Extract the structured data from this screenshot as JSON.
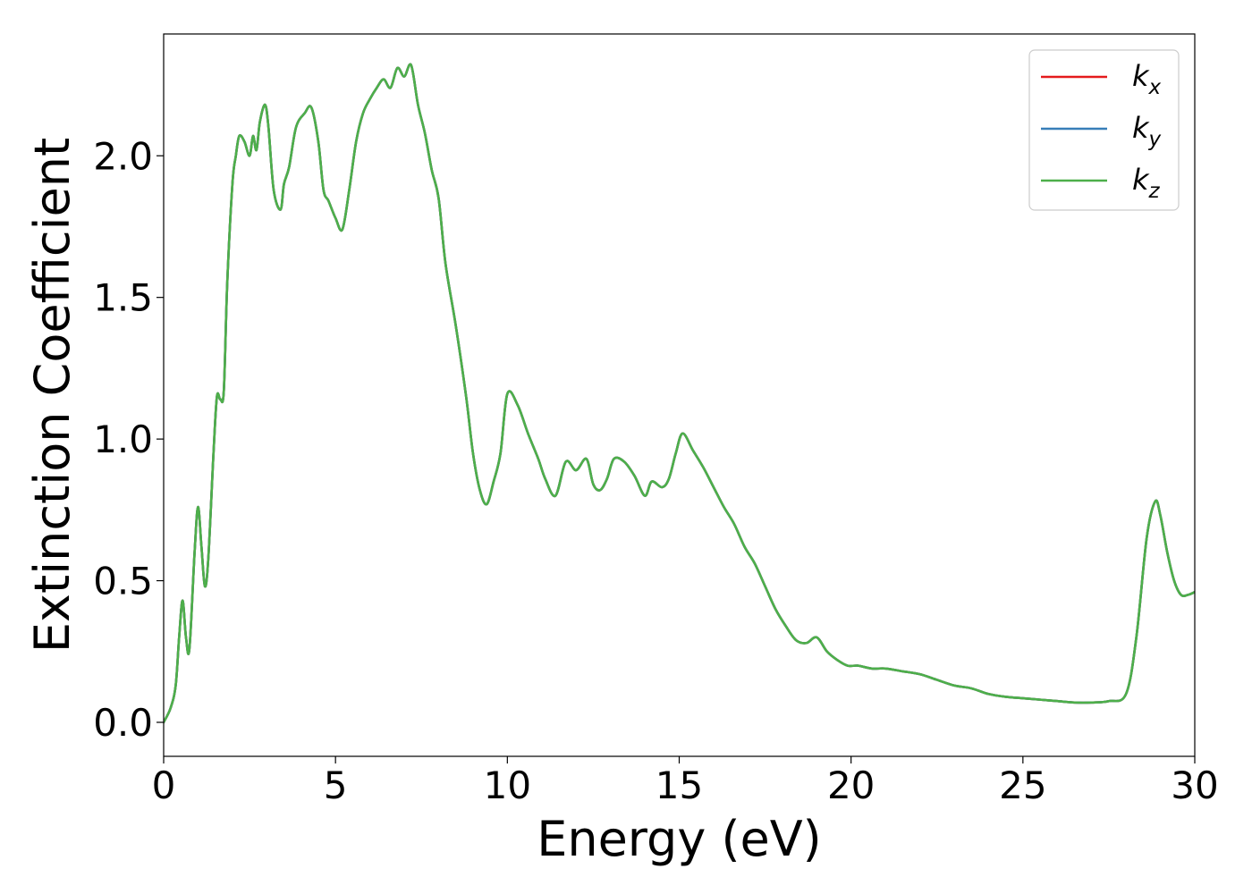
{
  "chart_data": {
    "type": "line",
    "xlabel": "Energy (eV)",
    "ylabel": "Extinction Coefficient",
    "xlim": [
      0,
      30
    ],
    "ylim": [
      -0.12,
      2.43
    ],
    "xticks": [
      0,
      5,
      10,
      15,
      20,
      25,
      30
    ],
    "xtick_labels": [
      "0",
      "5",
      "10",
      "15",
      "20",
      "25",
      "30"
    ],
    "yticks": [
      0.0,
      0.5,
      1.0,
      1.5,
      2.0
    ],
    "ytick_labels": [
      "0.0",
      "0.5",
      "1.0",
      "1.5",
      "2.0"
    ],
    "grid": false,
    "legend_position": "top-right",
    "series": [
      {
        "name": "k_x",
        "label_base": "k",
        "label_sub": "x",
        "color": "#e41a1c",
        "x": [
          0,
          0.2,
          0.35,
          0.45,
          0.55,
          0.65,
          0.75,
          0.9,
          1.0,
          1.1,
          1.2,
          1.3,
          1.45,
          1.55,
          1.65,
          1.75,
          1.85,
          2.0,
          2.1,
          2.2,
          2.35,
          2.5,
          2.6,
          2.7,
          2.8,
          2.95,
          3.05,
          3.2,
          3.4,
          3.5,
          3.65,
          3.85,
          4.1,
          4.3,
          4.5,
          4.65,
          4.8,
          5.0,
          5.2,
          5.4,
          5.6,
          5.8,
          6.0,
          6.2,
          6.4,
          6.6,
          6.8,
          7.0,
          7.2,
          7.4,
          7.6,
          7.8,
          8.0,
          8.2,
          8.5,
          8.8,
          9.0,
          9.2,
          9.4,
          9.6,
          9.8,
          10.0,
          10.3,
          10.6,
          10.9,
          11.1,
          11.4,
          11.7,
          12.0,
          12.3,
          12.5,
          12.7,
          12.9,
          13.1,
          13.4,
          13.7,
          14.0,
          14.2,
          14.5,
          14.7,
          14.9,
          15.1,
          15.4,
          15.7,
          16.0,
          16.3,
          16.6,
          16.9,
          17.2,
          17.5,
          17.8,
          18.1,
          18.4,
          18.7,
          19.0,
          19.3,
          19.6,
          19.9,
          20.2,
          20.6,
          21.0,
          21.5,
          22.0,
          22.5,
          23.0,
          23.5,
          24.0,
          24.5,
          25.0,
          25.5,
          26.0,
          26.5,
          27.0,
          27.5,
          28.0,
          28.3,
          28.6,
          28.85,
          29.0,
          29.2,
          29.4,
          29.6,
          29.8,
          30.0
        ],
        "y": [
          0.0,
          0.05,
          0.13,
          0.3,
          0.43,
          0.3,
          0.26,
          0.6,
          0.76,
          0.62,
          0.48,
          0.58,
          0.95,
          1.15,
          1.14,
          1.17,
          1.55,
          1.9,
          2.0,
          2.07,
          2.05,
          2.0,
          2.07,
          2.02,
          2.12,
          2.18,
          2.1,
          1.88,
          1.81,
          1.9,
          1.96,
          2.1,
          2.15,
          2.17,
          2.05,
          1.88,
          1.84,
          1.78,
          1.74,
          1.88,
          2.05,
          2.15,
          2.2,
          2.24,
          2.27,
          2.24,
          2.31,
          2.28,
          2.32,
          2.18,
          2.08,
          1.95,
          1.85,
          1.62,
          1.4,
          1.15,
          0.95,
          0.82,
          0.77,
          0.85,
          0.95,
          1.16,
          1.12,
          1.02,
          0.93,
          0.86,
          0.8,
          0.92,
          0.89,
          0.93,
          0.84,
          0.82,
          0.86,
          0.93,
          0.92,
          0.87,
          0.8,
          0.85,
          0.83,
          0.86,
          0.95,
          1.02,
          0.96,
          0.9,
          0.83,
          0.76,
          0.7,
          0.62,
          0.56,
          0.48,
          0.4,
          0.34,
          0.29,
          0.28,
          0.3,
          0.25,
          0.22,
          0.2,
          0.2,
          0.19,
          0.19,
          0.18,
          0.17,
          0.15,
          0.13,
          0.12,
          0.1,
          0.09,
          0.085,
          0.08,
          0.075,
          0.07,
          0.07,
          0.075,
          0.1,
          0.3,
          0.65,
          0.78,
          0.73,
          0.6,
          0.5,
          0.45,
          0.45,
          0.46
        ]
      },
      {
        "name": "k_y",
        "label_base": "k",
        "label_sub": "y",
        "color": "#377eb8",
        "x": [
          0,
          0.2,
          0.35,
          0.45,
          0.55,
          0.65,
          0.75,
          0.9,
          1.0,
          1.1,
          1.2,
          1.3,
          1.45,
          1.55,
          1.65,
          1.75,
          1.85,
          2.0,
          2.1,
          2.2,
          2.35,
          2.5,
          2.6,
          2.7,
          2.8,
          2.95,
          3.05,
          3.2,
          3.4,
          3.5,
          3.65,
          3.85,
          4.1,
          4.3,
          4.5,
          4.65,
          4.8,
          5.0,
          5.2,
          5.4,
          5.6,
          5.8,
          6.0,
          6.2,
          6.4,
          6.6,
          6.8,
          7.0,
          7.2,
          7.4,
          7.6,
          7.8,
          8.0,
          8.2,
          8.5,
          8.8,
          9.0,
          9.2,
          9.4,
          9.6,
          9.8,
          10.0,
          10.3,
          10.6,
          10.9,
          11.1,
          11.4,
          11.7,
          12.0,
          12.3,
          12.5,
          12.7,
          12.9,
          13.1,
          13.4,
          13.7,
          14.0,
          14.2,
          14.5,
          14.7,
          14.9,
          15.1,
          15.4,
          15.7,
          16.0,
          16.3,
          16.6,
          16.9,
          17.2,
          17.5,
          17.8,
          18.1,
          18.4,
          18.7,
          19.0,
          19.3,
          19.6,
          19.9,
          20.2,
          20.6,
          21.0,
          21.5,
          22.0,
          22.5,
          23.0,
          23.5,
          24.0,
          24.5,
          25.0,
          25.5,
          26.0,
          26.5,
          27.0,
          27.5,
          28.0,
          28.3,
          28.6,
          28.85,
          29.0,
          29.2,
          29.4,
          29.6,
          29.8,
          30.0
        ],
        "y": [
          0.0,
          0.05,
          0.13,
          0.3,
          0.43,
          0.3,
          0.26,
          0.6,
          0.76,
          0.62,
          0.48,
          0.58,
          0.95,
          1.15,
          1.14,
          1.17,
          1.55,
          1.9,
          2.0,
          2.07,
          2.05,
          2.0,
          2.07,
          2.02,
          2.12,
          2.18,
          2.1,
          1.88,
          1.81,
          1.9,
          1.96,
          2.1,
          2.15,
          2.17,
          2.05,
          1.88,
          1.84,
          1.78,
          1.74,
          1.88,
          2.05,
          2.15,
          2.2,
          2.24,
          2.27,
          2.24,
          2.31,
          2.28,
          2.32,
          2.18,
          2.08,
          1.95,
          1.85,
          1.62,
          1.4,
          1.15,
          0.95,
          0.82,
          0.77,
          0.85,
          0.95,
          1.16,
          1.12,
          1.02,
          0.93,
          0.86,
          0.8,
          0.92,
          0.89,
          0.93,
          0.84,
          0.82,
          0.86,
          0.93,
          0.92,
          0.87,
          0.8,
          0.85,
          0.83,
          0.86,
          0.95,
          1.02,
          0.96,
          0.9,
          0.83,
          0.76,
          0.7,
          0.62,
          0.56,
          0.48,
          0.4,
          0.34,
          0.29,
          0.28,
          0.3,
          0.25,
          0.22,
          0.2,
          0.2,
          0.19,
          0.19,
          0.18,
          0.17,
          0.15,
          0.13,
          0.12,
          0.1,
          0.09,
          0.085,
          0.08,
          0.075,
          0.07,
          0.07,
          0.075,
          0.1,
          0.3,
          0.65,
          0.78,
          0.73,
          0.6,
          0.5,
          0.45,
          0.45,
          0.46
        ]
      },
      {
        "name": "k_z",
        "label_base": "k",
        "label_sub": "z",
        "color": "#4daf4a",
        "x": [
          0,
          0.2,
          0.35,
          0.45,
          0.55,
          0.65,
          0.75,
          0.9,
          1.0,
          1.1,
          1.2,
          1.3,
          1.45,
          1.55,
          1.65,
          1.75,
          1.85,
          2.0,
          2.1,
          2.2,
          2.35,
          2.5,
          2.6,
          2.7,
          2.8,
          2.95,
          3.05,
          3.2,
          3.4,
          3.5,
          3.65,
          3.85,
          4.1,
          4.3,
          4.5,
          4.65,
          4.8,
          5.0,
          5.2,
          5.4,
          5.6,
          5.8,
          6.0,
          6.2,
          6.4,
          6.6,
          6.8,
          7.0,
          7.2,
          7.4,
          7.6,
          7.8,
          8.0,
          8.2,
          8.5,
          8.8,
          9.0,
          9.2,
          9.4,
          9.6,
          9.8,
          10.0,
          10.3,
          10.6,
          10.9,
          11.1,
          11.4,
          11.7,
          12.0,
          12.3,
          12.5,
          12.7,
          12.9,
          13.1,
          13.4,
          13.7,
          14.0,
          14.2,
          14.5,
          14.7,
          14.9,
          15.1,
          15.4,
          15.7,
          16.0,
          16.3,
          16.6,
          16.9,
          17.2,
          17.5,
          17.8,
          18.1,
          18.4,
          18.7,
          19.0,
          19.3,
          19.6,
          19.9,
          20.2,
          20.6,
          21.0,
          21.5,
          22.0,
          22.5,
          23.0,
          23.5,
          24.0,
          24.5,
          25.0,
          25.5,
          26.0,
          26.5,
          27.0,
          27.5,
          28.0,
          28.3,
          28.6,
          28.85,
          29.0,
          29.2,
          29.4,
          29.6,
          29.8,
          30.0
        ],
        "y": [
          0.0,
          0.05,
          0.13,
          0.3,
          0.43,
          0.3,
          0.26,
          0.6,
          0.76,
          0.62,
          0.48,
          0.58,
          0.95,
          1.15,
          1.14,
          1.17,
          1.55,
          1.9,
          2.0,
          2.07,
          2.05,
          2.0,
          2.07,
          2.02,
          2.12,
          2.18,
          2.1,
          1.88,
          1.81,
          1.9,
          1.96,
          2.1,
          2.15,
          2.17,
          2.05,
          1.88,
          1.84,
          1.78,
          1.74,
          1.88,
          2.05,
          2.15,
          2.2,
          2.24,
          2.27,
          2.24,
          2.31,
          2.28,
          2.32,
          2.18,
          2.08,
          1.95,
          1.85,
          1.62,
          1.4,
          1.15,
          0.95,
          0.82,
          0.77,
          0.85,
          0.95,
          1.16,
          1.12,
          1.02,
          0.93,
          0.86,
          0.8,
          0.92,
          0.89,
          0.93,
          0.84,
          0.82,
          0.86,
          0.93,
          0.92,
          0.87,
          0.8,
          0.85,
          0.83,
          0.86,
          0.95,
          1.02,
          0.96,
          0.9,
          0.83,
          0.76,
          0.7,
          0.62,
          0.56,
          0.48,
          0.4,
          0.34,
          0.29,
          0.28,
          0.3,
          0.25,
          0.22,
          0.2,
          0.2,
          0.19,
          0.19,
          0.18,
          0.17,
          0.15,
          0.13,
          0.12,
          0.1,
          0.09,
          0.085,
          0.08,
          0.075,
          0.07,
          0.07,
          0.075,
          0.1,
          0.3,
          0.65,
          0.78,
          0.73,
          0.6,
          0.5,
          0.45,
          0.45,
          0.46
        ]
      }
    ]
  }
}
